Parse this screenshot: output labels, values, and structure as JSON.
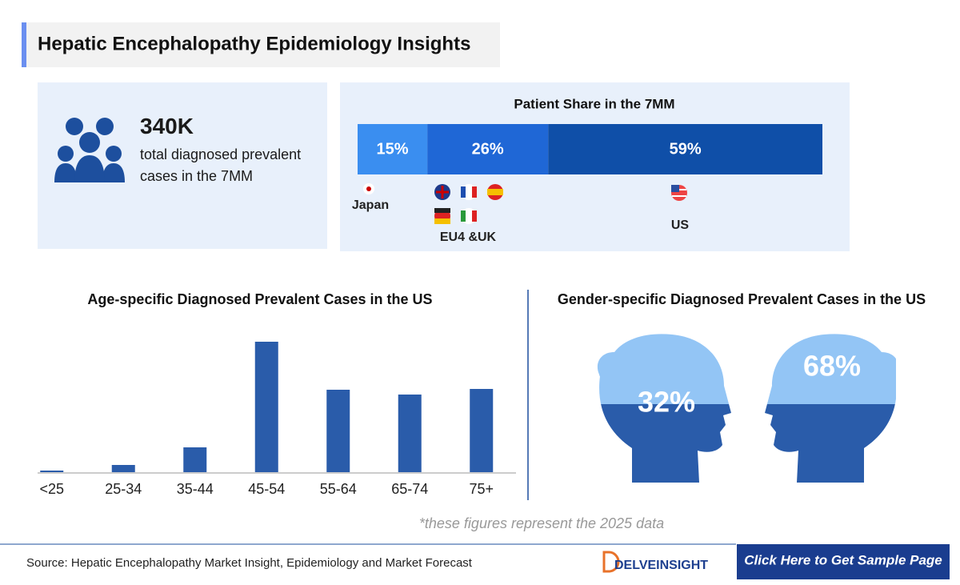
{
  "header": {
    "title": "Hepatic Encephalopathy Epidemiology Insights"
  },
  "summary": {
    "value": "340K",
    "text": "total diagnosed prevalent cases in the 7MM"
  },
  "chart_data": [
    {
      "type": "share",
      "title": "Patient Share in the 7MM",
      "categories": [
        "Japan",
        "EU4 &UK",
        "US"
      ],
      "values": [
        15,
        26,
        59
      ],
      "value_labels": [
        "15%",
        "26%",
        "59%"
      ],
      "colors": [
        "#3a8ef0",
        "#1f67d6",
        "#0f4fa8"
      ]
    },
    {
      "type": "bar",
      "title": "Age-specific Diagnosed Prevalent Cases in the US",
      "categories": [
        "<25",
        "25-34",
        "35-44",
        "45-54",
        "55-64",
        "65-74",
        "75+"
      ],
      "values": [
        2,
        9,
        31,
        163,
        103,
        97,
        104
      ],
      "color": "#2a5caa"
    },
    {
      "type": "gender",
      "title": "Gender-specific Diagnosed Prevalent Cases in the US",
      "values": [
        32,
        68
      ],
      "value_labels": [
        "32%",
        "68%"
      ],
      "colors": [
        "#93c5f5",
        "#2a5caa"
      ]
    }
  ],
  "footnote": "*these figures represent the 2025 data",
  "source": "Source: Hepatic Encephalopathy Market Insight, Epidemiology and Market Forecast",
  "logo": "DELVEINSIGHT",
  "cta": "Click Here to Get Sample Page"
}
